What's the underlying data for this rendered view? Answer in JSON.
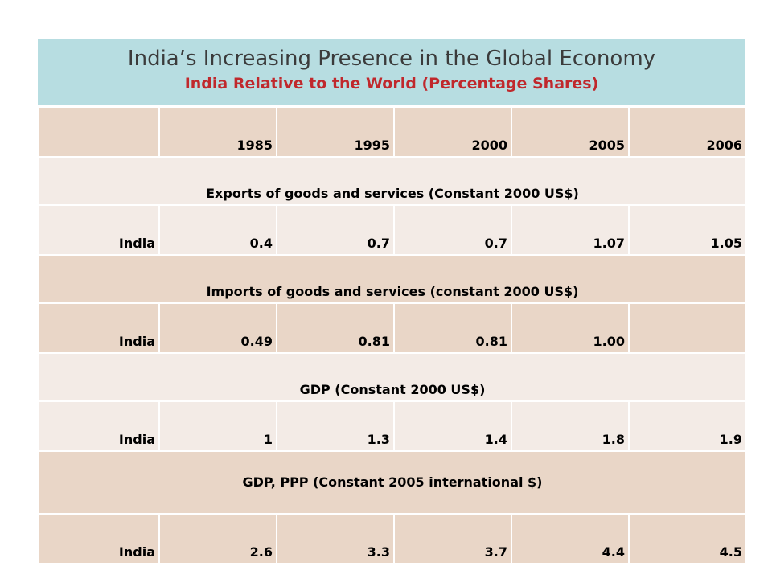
{
  "title": "India’s Increasing Presence in the Global Economy",
  "subtitle": "India Relative to the World (Percentage Shares)",
  "table": {
    "years": [
      "1985",
      "1995",
      "2000",
      "2005",
      "2006"
    ],
    "sections": [
      {
        "heading": "Exports of goods and services (Constant 2000 US$)",
        "row": {
          "label": "India",
          "values": [
            "0.4",
            "0.7",
            "0.7",
            "1.07",
            "1.05"
          ]
        }
      },
      {
        "heading": "Imports of goods and services (constant 2000 US$)",
        "row": {
          "label": "India",
          "values": [
            "0.49",
            "0.81",
            "0.81",
            "1.00",
            ""
          ]
        }
      },
      {
        "heading": "GDP (Constant 2000 US$)",
        "row": {
          "label": "India",
          "values": [
            "1",
            "1.3",
            "1.4",
            "1.8",
            "1.9"
          ]
        }
      },
      {
        "heading": "GDP, PPP (Constant 2005 international $)",
        "row": {
          "label": "India",
          "values": [
            "2.6",
            "3.3",
            "3.7",
            "4.4",
            "4.5"
          ]
        }
      }
    ]
  },
  "colors": {
    "header_bg": "#b7dde1",
    "subtitle": "#c0282c",
    "row_dark": "#e9d6c7",
    "row_light": "#f3ebe6"
  }
}
